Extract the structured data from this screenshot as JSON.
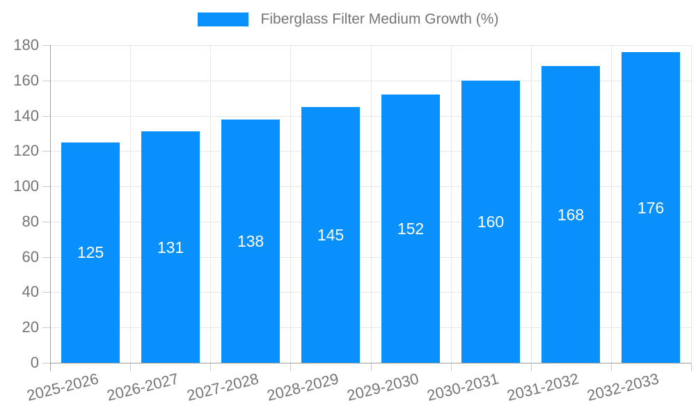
{
  "legend": {
    "label": "Fiberglass Filter Medium Growth (%)"
  },
  "chart_data": {
    "type": "bar",
    "title": "Fiberglass Filter Medium Growth (%)",
    "categories": [
      "2025-2026",
      "2026-2027",
      "2027-2028",
      "2028-2029",
      "2029-2030",
      "2030-2031",
      "2031-2032",
      "2032-2033"
    ],
    "values": [
      125,
      131,
      138,
      145,
      152,
      160,
      168,
      176
    ],
    "series": [
      {
        "name": "Fiberglass Filter Medium Growth (%)",
        "values": [
          125,
          131,
          138,
          145,
          152,
          160,
          168,
          176
        ]
      }
    ],
    "xlabel": "",
    "ylabel": "",
    "ylim": [
      0,
      180
    ],
    "ytick_step": 20,
    "ytick_labels": [
      "0",
      "20",
      "40",
      "60",
      "80",
      "100",
      "120",
      "140",
      "160",
      "180"
    ],
    "grid": true,
    "legend_position": "top",
    "value_labels": "inside-center",
    "colors": {
      "bar": "#0990fa",
      "value_label": "#ffffff",
      "axis_text": "#757575",
      "gridline": "#e6e6e6",
      "axis_line": "#9e9e9e",
      "tick": "#c9c9c9"
    }
  }
}
